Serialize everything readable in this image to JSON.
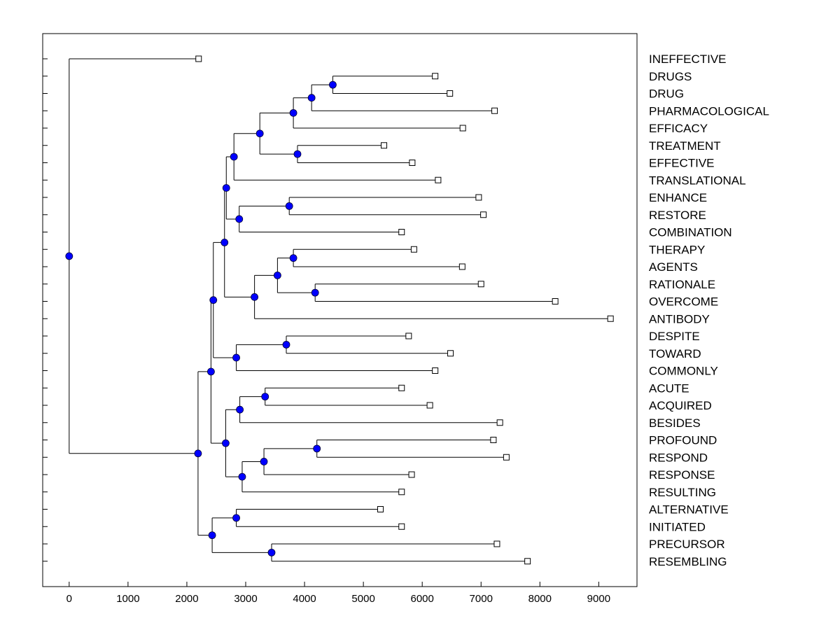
{
  "chart_data": {
    "type": "dendrogram",
    "title": "",
    "xlabel": "",
    "ylabel": "",
    "xlim": [
      -450,
      9650
    ],
    "xticks": [
      0,
      1000,
      2000,
      3000,
      4000,
      5000,
      6000,
      7000,
      8000,
      9000
    ],
    "grid": false,
    "colors": {
      "node": "#0000ff",
      "line": "#000000",
      "leaf_fill": "#ffffff"
    },
    "leaves": [
      {
        "label": "INEFFECTIVE",
        "value": 2200
      },
      {
        "label": "DRUGS",
        "value": 6220
      },
      {
        "label": "DRUG",
        "value": 6470
      },
      {
        "label": "PHARMACOLOGICAL",
        "value": 7230
      },
      {
        "label": "EFFICACY",
        "value": 6690
      },
      {
        "label": "TREATMENT",
        "value": 5350
      },
      {
        "label": "EFFECTIVE",
        "value": 5830
      },
      {
        "label": "TRANSLATIONAL",
        "value": 6270
      },
      {
        "label": "ENHANCE",
        "value": 6960
      },
      {
        "label": "RESTORE",
        "value": 7040
      },
      {
        "label": "COMBINATION",
        "value": 5650
      },
      {
        "label": "THERAPY",
        "value": 5860
      },
      {
        "label": "AGENTS",
        "value": 6680
      },
      {
        "label": "RATIONALE",
        "value": 7000
      },
      {
        "label": "OVERCOME",
        "value": 8260
      },
      {
        "label": "ANTIBODY",
        "value": 9200
      },
      {
        "label": "DESPITE",
        "value": 5770
      },
      {
        "label": "TOWARD",
        "value": 6480
      },
      {
        "label": "COMMONLY",
        "value": 6220
      },
      {
        "label": "ACUTE",
        "value": 5650
      },
      {
        "label": "ACQUIRED",
        "value": 6130
      },
      {
        "label": "BESIDES",
        "value": 7320
      },
      {
        "label": "PROFOUND",
        "value": 7210
      },
      {
        "label": "RESPOND",
        "value": 7430
      },
      {
        "label": "RESPONSE",
        "value": 5820
      },
      {
        "label": "RESULTING",
        "value": 5650
      },
      {
        "label": "ALTERNATIVE",
        "value": 5290
      },
      {
        "label": "INITIATED",
        "value": 5650
      },
      {
        "label": "PRECURSOR",
        "value": 7270
      },
      {
        "label": "RESEMBLING",
        "value": 7790
      }
    ],
    "tree": {
      "value": 0,
      "children": [
        {
          "leaf": 0
        },
        {
          "value": 2190,
          "children": [
            {
              "value": 2410,
              "children": [
                {
                  "value": 2450,
                  "children": [
                    {
                      "value": 2640,
                      "children": [
                        {
                          "value": 2670,
                          "children": [
                            {
                              "value": 2800,
                              "children": [
                                {
                                  "value": 3240,
                                  "children": [
                                    {
                                      "value": 3810,
                                      "children": [
                                        {
                                          "value": 4120,
                                          "children": [
                                            {
                                              "value": 4480,
                                              "children": [
                                                {
                                                  "leaf": 1
                                                },
                                                {
                                                  "leaf": 2
                                                }
                                              ]
                                            },
                                            {
                                              "leaf": 3
                                            }
                                          ]
                                        },
                                        {
                                          "leaf": 4
                                        }
                                      ]
                                    },
                                    {
                                      "value": 3880,
                                      "children": [
                                        {
                                          "leaf": 5
                                        },
                                        {
                                          "leaf": 6
                                        }
                                      ]
                                    }
                                  ]
                                },
                                {
                                  "leaf": 7
                                }
                              ]
                            },
                            {
                              "value": 2890,
                              "children": [
                                {
                                  "value": 3740,
                                  "children": [
                                    {
                                      "leaf": 8
                                    },
                                    {
                                      "leaf": 9
                                    }
                                  ]
                                },
                                {
                                  "leaf": 10
                                }
                              ]
                            }
                          ]
                        },
                        {
                          "value": 3150,
                          "children": [
                            {
                              "value": 3540,
                              "children": [
                                {
                                  "value": 3810,
                                  "children": [
                                    {
                                      "leaf": 11
                                    },
                                    {
                                      "leaf": 12
                                    }
                                  ]
                                },
                                {
                                  "value": 4180,
                                  "children": [
                                    {
                                      "leaf": 13
                                    },
                                    {
                                      "leaf": 14
                                    }
                                  ]
                                }
                              ]
                            },
                            {
                              "leaf": 15
                            }
                          ]
                        }
                      ]
                    },
                    {
                      "value": 2840,
                      "children": [
                        {
                          "value": 3690,
                          "children": [
                            {
                              "leaf": 16
                            },
                            {
                              "leaf": 17
                            }
                          ]
                        },
                        {
                          "leaf": 18
                        }
                      ]
                    }
                  ]
                },
                {
                  "value": 2660,
                  "children": [
                    {
                      "value": 2900,
                      "children": [
                        {
                          "value": 3330,
                          "children": [
                            {
                              "leaf": 19
                            },
                            {
                              "leaf": 20
                            }
                          ]
                        },
                        {
                          "leaf": 21
                        }
                      ]
                    },
                    {
                      "value": 2940,
                      "children": [
                        {
                          "value": 3310,
                          "children": [
                            {
                              "value": 4210,
                              "children": [
                                {
                                  "leaf": 22
                                },
                                {
                                  "leaf": 23
                                }
                              ]
                            },
                            {
                              "leaf": 24
                            }
                          ]
                        },
                        {
                          "leaf": 25
                        }
                      ]
                    }
                  ]
                }
              ]
            },
            {
              "value": 2430,
              "children": [
                {
                  "value": 2840,
                  "children": [
                    {
                      "leaf": 26
                    },
                    {
                      "leaf": 27
                    }
                  ]
                },
                {
                  "value": 3440,
                  "children": [
                    {
                      "leaf": 28
                    },
                    {
                      "leaf": 29
                    }
                  ]
                }
              ]
            }
          ]
        }
      ]
    }
  }
}
